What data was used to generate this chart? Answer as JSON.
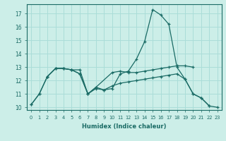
{
  "xlabel": "Humidex (Indice chaleur)",
  "background_color": "#cceee8",
  "grid_color": "#aaddd8",
  "line_color": "#1a6b65",
  "xlim": [
    -0.5,
    23.5
  ],
  "ylim": [
    9.8,
    17.7
  ],
  "yticks": [
    10,
    11,
    12,
    13,
    14,
    15,
    16,
    17
  ],
  "xticks": [
    0,
    1,
    2,
    3,
    4,
    5,
    6,
    7,
    8,
    9,
    10,
    11,
    12,
    13,
    14,
    15,
    16,
    17,
    18,
    19,
    20,
    21,
    22,
    23
  ],
  "series": [
    {
      "x": [
        0,
        1,
        2,
        3,
        4,
        5,
        6,
        7,
        8,
        9,
        10,
        11,
        12,
        13,
        14,
        15,
        16,
        17,
        18,
        19,
        20,
        21,
        22
      ],
      "y": [
        10.2,
        11.0,
        12.3,
        12.9,
        12.9,
        12.8,
        12.8,
        11.0,
        11.4,
        11.3,
        11.4,
        12.5,
        12.7,
        13.6,
        14.9,
        17.3,
        16.9,
        16.2,
        13.0,
        12.1,
        11.0,
        10.7,
        10.1
      ]
    },
    {
      "x": [
        2,
        3,
        4,
        5,
        6,
        7,
        8,
        10,
        11,
        12,
        13,
        14,
        15,
        16,
        17,
        18,
        19,
        20
      ],
      "y": [
        12.3,
        12.9,
        12.9,
        12.8,
        12.5,
        11.0,
        11.5,
        12.6,
        12.7,
        12.6,
        12.6,
        12.7,
        12.8,
        12.9,
        13.0,
        13.1,
        13.1,
        13.0
      ]
    },
    {
      "x": [
        0,
        1,
        2,
        3,
        4,
        5,
        6,
        7,
        8,
        9,
        10,
        11,
        12,
        13,
        14,
        15,
        16,
        17,
        18,
        19,
        20,
        21,
        22,
        23
      ],
      "y": [
        10.2,
        11.0,
        12.3,
        12.9,
        12.9,
        12.8,
        12.5,
        11.0,
        11.5,
        11.3,
        11.6,
        11.8,
        11.9,
        12.0,
        12.1,
        12.2,
        12.3,
        12.4,
        12.5,
        12.1,
        11.0,
        10.7,
        10.1,
        10.0
      ]
    }
  ]
}
